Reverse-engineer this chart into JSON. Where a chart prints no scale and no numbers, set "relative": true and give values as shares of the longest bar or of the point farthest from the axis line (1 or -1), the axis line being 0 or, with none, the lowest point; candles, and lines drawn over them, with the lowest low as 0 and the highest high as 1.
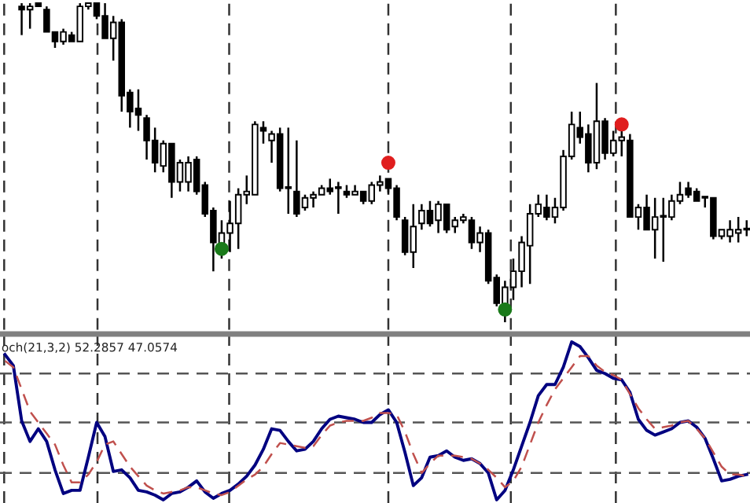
{
  "chart_data": [
    {
      "type": "candlestick",
      "relative": true,
      "tick_labels": false,
      "color": "#000000",
      "grid": "x",
      "categories": [
        null,
        null,
        null,
        null,
        null,
        null,
        null,
        null,
        null,
        null,
        null,
        null,
        null,
        null,
        null,
        null,
        null,
        null,
        null,
        null,
        null,
        null,
        null,
        null,
        null,
        null,
        null,
        null,
        null,
        null,
        null,
        null,
        null,
        null,
        null,
        null,
        null,
        null,
        null,
        null,
        null,
        null,
        null,
        null,
        null,
        null,
        null,
        null,
        null,
        null,
        null,
        null,
        null,
        null,
        null,
        null,
        null,
        null,
        null,
        null,
        null,
        null,
        null,
        null,
        null,
        null,
        null,
        null,
        null,
        null,
        null,
        null,
        null,
        null,
        null,
        null,
        null,
        null,
        null,
        null,
        null,
        null,
        null,
        null,
        null,
        null,
        null,
        null
      ],
      "ohlc": [
        [
          0.99,
          1,
          0.9,
          0.98
        ],
        [
          0.98,
          1,
          0.92,
          0.99
        ],
        [
          1,
          1,
          0.99,
          0.99
        ],
        [
          0.98,
          0.99,
          0.91,
          0.91
        ],
        [
          0.91,
          0.91,
          0.86,
          0.88
        ],
        [
          0.88,
          0.92,
          0.87,
          0.91
        ],
        [
          0.9,
          0.91,
          0.88,
          0.88
        ],
        [
          0.88,
          1,
          0.88,
          0.99
        ],
        [
          0.99,
          1,
          0.98,
          1
        ],
        [
          1,
          1,
          0.95,
          0.96
        ],
        [
          0.96,
          1,
          0.89,
          0.89
        ],
        [
          0.89,
          0.96,
          0.82,
          0.94
        ],
        [
          0.94,
          0.95,
          0.66,
          0.71
        ],
        [
          0.72,
          0.73,
          0.61,
          0.66
        ],
        [
          0.67,
          0.73,
          0.6,
          0.65
        ],
        [
          0.64,
          0.65,
          0.51,
          0.57
        ],
        [
          0.57,
          0.61,
          0.47,
          0.5
        ],
        [
          0.49,
          0.57,
          0.47,
          0.56
        ],
        [
          0.56,
          0.56,
          0.39,
          0.44
        ],
        [
          0.44,
          0.51,
          0.41,
          0.5
        ],
        [
          0.44,
          0.52,
          0.41,
          0.5
        ],
        [
          0.51,
          0.52,
          0.4,
          0.41
        ],
        [
          0.43,
          0.44,
          0.33,
          0.34
        ],
        [
          0.35,
          0.36,
          0.16,
          0.25
        ],
        [
          0.24,
          0.32,
          0.2,
          0.28
        ],
        [
          0.28,
          0.38,
          0.22,
          0.31
        ],
        [
          0.31,
          0.42,
          0.23,
          0.4
        ],
        [
          0.4,
          0.46,
          0.37,
          0.41
        ],
        [
          0.4,
          0.63,
          0.4,
          0.62
        ],
        [
          0.61,
          0.63,
          0.56,
          0.6
        ],
        [
          0.57,
          0.6,
          0.5,
          0.59
        ],
        [
          0.59,
          0.61,
          0.41,
          0.42
        ],
        [
          0.42,
          0.61,
          0.34,
          0.42
        ],
        [
          0.41,
          0.57,
          0.33,
          0.34
        ],
        [
          0.36,
          0.4,
          0.35,
          0.39
        ],
        [
          0.39,
          0.41,
          0.36,
          0.4
        ],
        [
          0.4,
          0.43,
          0.4,
          0.42
        ],
        [
          0.42,
          0.45,
          0.4,
          0.41
        ],
        [
          0.42,
          0.44,
          0.34,
          0.42
        ],
        [
          0.41,
          0.43,
          0.39,
          0.4
        ],
        [
          0.4,
          0.43,
          0.4,
          0.41
        ],
        [
          0.41,
          0.41,
          0.37,
          0.38
        ],
        [
          0.38,
          0.44,
          0.37,
          0.43
        ],
        [
          0.43,
          0.46,
          0.41,
          0.44
        ],
        [
          0.45,
          0.45,
          0.4,
          0.42
        ],
        [
          0.42,
          0.43,
          0.32,
          0.33
        ],
        [
          0.32,
          0.33,
          0.21,
          0.22
        ],
        [
          0.22,
          0.37,
          0.17,
          0.3
        ],
        [
          0.31,
          0.37,
          0.29,
          0.35
        ],
        [
          0.35,
          0.38,
          0.3,
          0.31
        ],
        [
          0.32,
          0.38,
          0.28,
          0.37
        ],
        [
          0.37,
          0.37,
          0.28,
          0.29
        ],
        [
          0.3,
          0.33,
          0.28,
          0.32
        ],
        [
          0.32,
          0.34,
          0.31,
          0.33
        ],
        [
          0.32,
          0.33,
          0.23,
          0.25
        ],
        [
          0.25,
          0.3,
          0.22,
          0.28
        ],
        [
          0.28,
          0.29,
          0.12,
          0.13
        ],
        [
          0.14,
          0.15,
          0.05,
          0.06
        ],
        [
          0.05,
          0.13,
          0,
          0.11
        ],
        [
          0.11,
          0.2,
          0.07,
          0.16
        ],
        [
          0.16,
          0.27,
          0.11,
          0.25
        ],
        [
          0.24,
          0.37,
          0.12,
          0.34
        ],
        [
          0.34,
          0.4,
          0.33,
          0.37
        ],
        [
          0.36,
          0.4,
          0.32,
          0.33
        ],
        [
          0.33,
          0.39,
          0.31,
          0.36
        ],
        [
          0.36,
          0.54,
          0.35,
          0.52
        ],
        [
          0.52,
          0.66,
          0.51,
          0.62
        ],
        [
          0.61,
          0.66,
          0.56,
          0.58
        ],
        [
          0.59,
          0.62,
          0.47,
          0.5
        ],
        [
          0.5,
          0.75,
          0.48,
          0.63
        ],
        [
          0.63,
          0.64,
          0.51,
          0.53
        ],
        [
          0.53,
          0.6,
          0.52,
          0.57
        ],
        [
          0.57,
          0.6,
          0.52,
          0.58
        ],
        [
          0.57,
          0.59,
          0.33,
          0.33
        ],
        [
          0.33,
          0.37,
          0.29,
          0.36
        ],
        [
          0.36,
          0.4,
          0.29,
          0.29
        ],
        [
          0.29,
          0.39,
          0.2,
          0.33
        ],
        [
          0.33,
          0.39,
          0.19,
          0.33
        ],
        [
          0.33,
          0.4,
          0.32,
          0.38
        ],
        [
          0.38,
          0.44,
          0.37,
          0.4
        ],
        [
          0.42,
          0.44,
          0.39,
          0.4
        ],
        [
          0.41,
          0.42,
          0.38,
          0.38
        ],
        [
          0.39,
          0.39,
          0.36,
          0.39
        ],
        [
          0.39,
          0.39,
          0.26,
          0.27
        ],
        [
          0.27,
          0.29,
          0.26,
          0.29
        ],
        [
          0.27,
          0.32,
          0.25,
          0.29
        ],
        [
          0.28,
          0.33,
          0.25,
          0.29
        ],
        [
          0.29,
          0.32,
          0.27,
          0.29
        ]
      ],
      "series": [
        {
          "type": "scatter",
          "color": "#1a7a1a",
          "values": [
            null,
            null,
            null,
            null,
            null,
            null,
            null,
            null,
            null,
            null,
            null,
            null,
            null,
            null,
            null,
            null,
            null,
            null,
            null,
            null,
            null,
            null,
            null,
            null,
            0.23,
            null,
            null,
            null,
            null,
            null,
            null,
            null,
            null,
            null,
            null,
            null,
            null,
            null,
            null,
            null,
            null,
            null,
            null,
            null,
            null,
            null,
            null,
            null,
            null,
            null,
            null,
            null,
            null,
            null,
            null,
            null,
            null,
            null,
            0.04,
            null,
            null,
            null,
            null,
            null,
            null,
            null,
            null,
            null,
            null,
            null,
            null,
            null,
            null,
            null,
            null,
            null,
            null,
            null,
            null,
            null,
            null,
            null,
            null,
            null,
            null,
            null,
            null,
            null
          ]
        },
        {
          "type": "scatter",
          "color": "#e01e1e",
          "values": [
            null,
            null,
            null,
            null,
            null,
            null,
            null,
            null,
            null,
            null,
            null,
            null,
            null,
            null,
            null,
            null,
            null,
            null,
            null,
            null,
            null,
            null,
            null,
            null,
            null,
            null,
            null,
            null,
            null,
            null,
            null,
            null,
            null,
            null,
            null,
            null,
            null,
            null,
            null,
            null,
            null,
            null,
            null,
            null,
            0.5,
            null,
            null,
            null,
            null,
            null,
            null,
            null,
            null,
            null,
            null,
            null,
            null,
            null,
            null,
            null,
            null,
            null,
            null,
            null,
            null,
            null,
            null,
            null,
            null,
            null,
            null,
            null,
            0.62,
            null,
            null,
            null,
            null,
            null,
            null,
            null,
            null,
            null,
            null,
            null,
            null,
            null,
            null,
            null
          ]
        }
      ]
    },
    {
      "type": "line",
      "relative": true,
      "tick_labels": false,
      "grid": "x",
      "categories": [
        null,
        null,
        null,
        null,
        null,
        null,
        null,
        null,
        null,
        null,
        null,
        null,
        null,
        null,
        null,
        null,
        null,
        null,
        null,
        null,
        null,
        null,
        null,
        null,
        null,
        null,
        null,
        null,
        null,
        null,
        null,
        null,
        null,
        null,
        null,
        null,
        null,
        null,
        null,
        null,
        null,
        null,
        null,
        null,
        null,
        null,
        null,
        null,
        null,
        null,
        null,
        null,
        null,
        null,
        null,
        null,
        null,
        null,
        null,
        null,
        null,
        null,
        null,
        null,
        null,
        null,
        null,
        null,
        null,
        null,
        null,
        null,
        null,
        null,
        null,
        null,
        null,
        null,
        null,
        null,
        null,
        null,
        null,
        null,
        null,
        null,
        null,
        null,
        null,
        null
      ],
      "annotations": [
        "och(21,3,2) 52.2857 47.0574"
      ],
      "ref_lines": [
        {
          "axis": "y",
          "value": 0.8,
          "color": "#555555",
          "line_style": "dashed"
        },
        {
          "axis": "y",
          "value": 0.49,
          "color": "#555555",
          "line_style": "dashed"
        },
        {
          "axis": "y",
          "value": 0.17,
          "color": "#555555",
          "line_style": "dashed"
        }
      ],
      "series": [
        {
          "color": "#000080",
          "line_style": "solid",
          "values": [
            0.92,
            0.85,
            0.5,
            0.37,
            0.45,
            0.37,
            0.19,
            0.04,
            0.06,
            0.06,
            0.27,
            0.49,
            0.4,
            0.18,
            0.19,
            0.14,
            0.06,
            0.05,
            0.03,
            0,
            0.04,
            0.05,
            0.08,
            0.12,
            0.05,
            0.01,
            0.04,
            0.06,
            0.1,
            0.15,
            0.22,
            0.32,
            0.45,
            0.44,
            0.37,
            0.31,
            0.32,
            0.37,
            0.45,
            0.51,
            0.53,
            0.52,
            0.51,
            0.49,
            0.49,
            0.54,
            0.57,
            0.49,
            0.3,
            0.09,
            0.14,
            0.27,
            0.28,
            0.31,
            0.27,
            0.25,
            0.26,
            0.23,
            0.17,
            0,
            0.06,
            0.19,
            0.34,
            0.49,
            0.66,
            0.73,
            0.73,
            0.84,
            1,
            0.97,
            0.9,
            0.82,
            0.8,
            0.77,
            0.76,
            0.68,
            0.51,
            0.44,
            0.41,
            0.43,
            0.45,
            0.49,
            0.5,
            0.46,
            0.39,
            0.26,
            0.12,
            0.13,
            0.15,
            0.16
          ]
        },
        {
          "color": "#c0504d",
          "line_style": "dashed",
          "values": [
            0.88,
            0.84,
            0.7,
            0.56,
            0.49,
            0.42,
            0.35,
            0.22,
            0.11,
            0.11,
            0.16,
            0.24,
            0.35,
            0.37,
            0.29,
            0.21,
            0.15,
            0.09,
            0.06,
            0.04,
            0.05,
            0.06,
            0.08,
            0.08,
            0.06,
            0.04,
            0.03,
            0.05,
            0.09,
            0.13,
            0.16,
            0.21,
            0.29,
            0.36,
            0.35,
            0.34,
            0.33,
            0.34,
            0.41,
            0.47,
            0.49,
            0.5,
            0.5,
            0.5,
            0.52,
            0.55,
            0.55,
            0.54,
            0.43,
            0.29,
            0.17,
            0.23,
            0.28,
            0.28,
            0.28,
            0.27,
            0.26,
            0.23,
            0.19,
            0.14,
            0.08,
            0.12,
            0.21,
            0.35,
            0.49,
            0.6,
            0.7,
            0.77,
            0.84,
            0.91,
            0.91,
            0.85,
            0.81,
            0.79,
            0.76,
            0.67,
            0.58,
            0.51,
            0.45,
            0.46,
            0.47,
            0.49,
            0.5,
            0.45,
            0.39,
            0.3,
            0.21,
            0.16,
            0.16,
            0.15
          ]
        }
      ]
    }
  ]
}
